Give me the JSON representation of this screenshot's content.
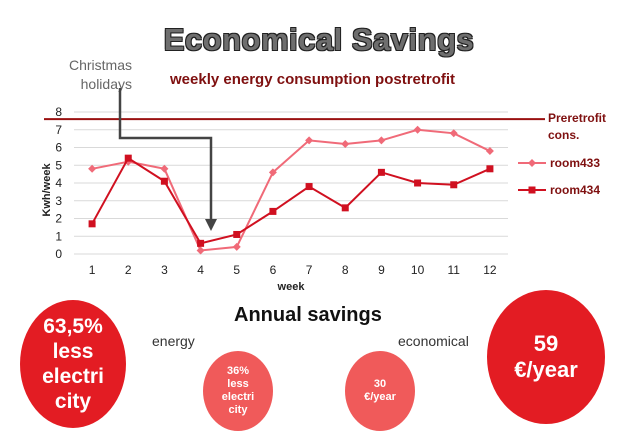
{
  "title": "Economical Savings",
  "annotation": "Christmas holidays",
  "chart_data": {
    "type": "line",
    "title": "weekly energy consumption postretrofit",
    "xlabel": "week",
    "ylabel": "Kwh/week",
    "x": [
      1,
      2,
      3,
      4,
      5,
      6,
      7,
      8,
      9,
      10,
      11,
      12
    ],
    "ylim": [
      0,
      8
    ],
    "yticks": [
      0,
      1,
      2,
      3,
      4,
      5,
      6,
      7,
      8
    ],
    "series": [
      {
        "name": "room433",
        "values": [
          4.8,
          5.2,
          4.8,
          0.2,
          0.4,
          4.6,
          6.4,
          6.2,
          6.4,
          7.0,
          6.8,
          5.8
        ],
        "color": "#f06a78",
        "marker": "diamond"
      },
      {
        "name": "room434",
        "values": [
          1.7,
          5.4,
          4.1,
          0.6,
          1.1,
          2.4,
          3.8,
          2.6,
          4.6,
          4.0,
          3.9,
          4.8
        ],
        "color": "#d01020",
        "marker": "square"
      }
    ],
    "reference_line": {
      "name": "Preretrofit cons.",
      "value": 7.6,
      "color": "#9a1010"
    },
    "legend": "right"
  },
  "savings": {
    "heading": "Annual savings",
    "energy_label": "energy",
    "economical_label": "economical",
    "energy_big": [
      "63,5%",
      "less",
      "electri",
      "city"
    ],
    "energy_small": [
      "36%",
      "less",
      "electri",
      "city"
    ],
    "econ_small": [
      "30",
      "€/year"
    ],
    "econ_big": [
      "59",
      "€/year"
    ]
  }
}
